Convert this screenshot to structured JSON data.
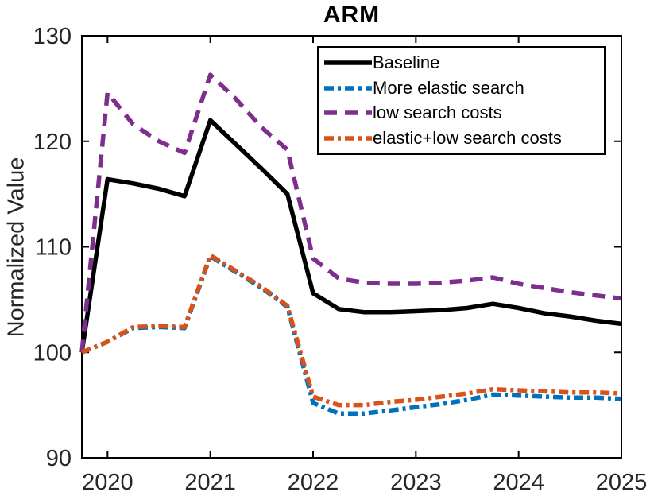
{
  "figure": {
    "window_background": "#ffffff",
    "axis_color": "#000000",
    "tick_label_color": "#262626"
  },
  "chart_data": {
    "type": "line",
    "title": "ARM",
    "xlabel": "",
    "ylabel": "Normalized Value",
    "xlim": [
      2019.75,
      2025
    ],
    "ylim": [
      90,
      130
    ],
    "xticks": [
      2020,
      2021,
      2022,
      2023,
      2024,
      2025
    ],
    "yticks": [
      90,
      100,
      110,
      120,
      130
    ],
    "grid": false,
    "legend_position": "upper-right-inside",
    "x": [
      2019.75,
      2020,
      2020.25,
      2020.5,
      2020.75,
      2021,
      2021.25,
      2021.5,
      2021.75,
      2022,
      2022.25,
      2022.5,
      2022.75,
      2023,
      2023.25,
      2023.5,
      2023.75,
      2024,
      2024.25,
      2024.5,
      2024.75,
      2025
    ],
    "series": [
      {
        "name": "Baseline",
        "color": "#000000",
        "style": "solid",
        "values": [
          100,
          116.4,
          116.0,
          115.5,
          114.8,
          122.0,
          119.7,
          117.4,
          115.0,
          105.6,
          104.1,
          103.8,
          103.8,
          103.9,
          104.0,
          104.2,
          104.6,
          104.2,
          103.7,
          103.4,
          103.0,
          102.7
        ]
      },
      {
        "name": "More elastic search",
        "color": "#0072BD",
        "style": "dashdot",
        "values": [
          100,
          101.0,
          102.3,
          102.4,
          102.3,
          109.1,
          107.6,
          106.1,
          104.3,
          95.2,
          94.2,
          94.2,
          94.5,
          94.8,
          95.1,
          95.5,
          96.0,
          95.9,
          95.8,
          95.7,
          95.7,
          95.6
        ]
      },
      {
        "name": "low search costs",
        "color": "#7E2F8E",
        "style": "dashed",
        "values": [
          100,
          124.6,
          121.6,
          120.0,
          118.9,
          126.3,
          124.0,
          121.3,
          119.2,
          108.9,
          107.0,
          106.6,
          106.5,
          106.5,
          106.6,
          106.8,
          107.1,
          106.5,
          106.1,
          105.7,
          105.4,
          105.1
        ]
      },
      {
        "name": "elastic+low search costs",
        "color": "#D95319",
        "style": "dashdot",
        "values": [
          100,
          101.0,
          102.4,
          102.5,
          102.4,
          109.2,
          107.7,
          106.2,
          104.4,
          95.8,
          95.0,
          95.0,
          95.3,
          95.5,
          95.8,
          96.1,
          96.5,
          96.4,
          96.3,
          96.2,
          96.2,
          96.1
        ]
      }
    ]
  }
}
